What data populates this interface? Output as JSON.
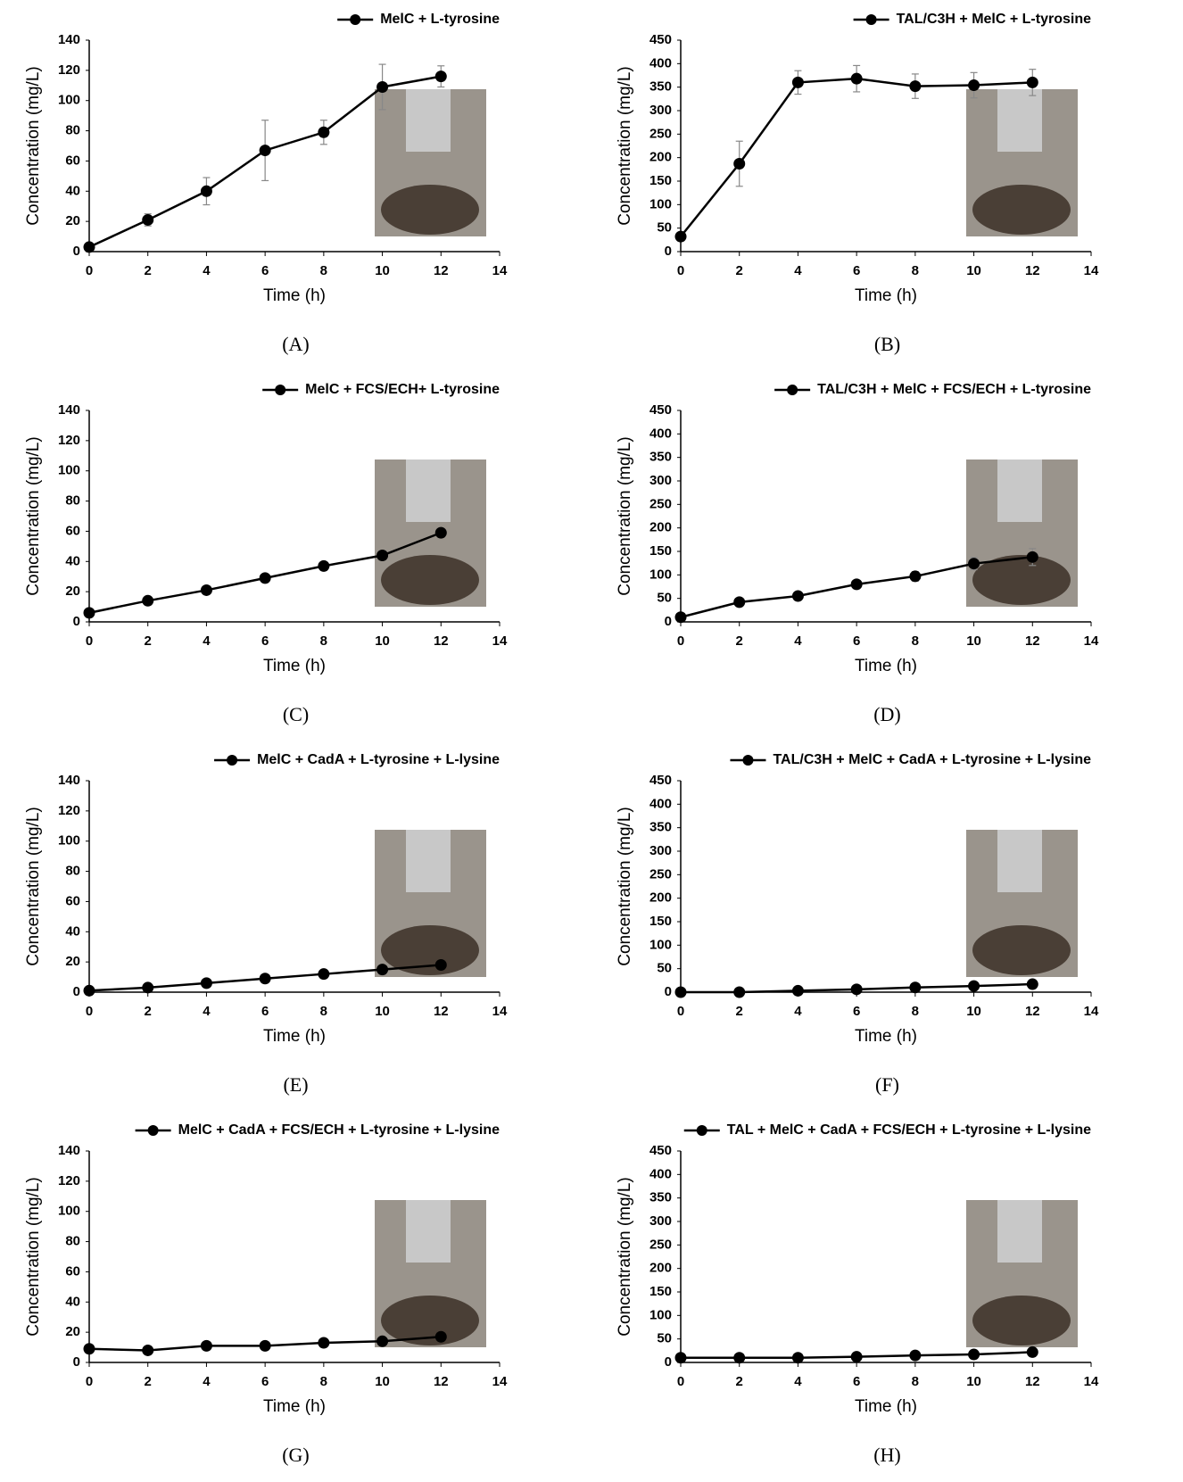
{
  "chart_data": [
    {
      "type": "line",
      "label": "(A)",
      "xlabel": "Time (h)",
      "ylabel": "Concentration (mg/L)",
      "x": [
        0,
        2,
        4,
        6,
        8,
        10,
        12
      ],
      "xlim": [
        0,
        14
      ],
      "xticks": [
        0,
        2,
        4,
        6,
        8,
        10,
        12,
        14
      ],
      "ylim": [
        0,
        140
      ],
      "yticks": [
        0,
        20,
        40,
        60,
        80,
        100,
        120,
        140
      ],
      "series": [
        {
          "name": "MelC + L-tyrosine",
          "color": "#000000",
          "values": [
            3,
            21,
            40,
            67,
            79,
            109,
            116
          ],
          "errors": [
            0,
            4,
            9,
            20,
            8,
            15,
            7
          ]
        }
      ]
    },
    {
      "type": "line",
      "label": "(B)",
      "xlabel": "Time (h)",
      "ylabel": "Concentration (mg/L)",
      "x": [
        0,
        2,
        4,
        6,
        8,
        10,
        12
      ],
      "xlim": [
        0,
        14
      ],
      "xticks": [
        0,
        2,
        4,
        6,
        8,
        10,
        12,
        14
      ],
      "ylim": [
        0,
        450
      ],
      "yticks": [
        0,
        50,
        100,
        150,
        200,
        250,
        300,
        350,
        400,
        450
      ],
      "series": [
        {
          "name": "TAL/C3H + MelC + L-tyrosine",
          "color": "#000000",
          "values": [
            32,
            187,
            360,
            368,
            352,
            354,
            360
          ],
          "errors": [
            5,
            48,
            25,
            28,
            26,
            27,
            28
          ]
        }
      ]
    },
    {
      "type": "line",
      "label": "(C)",
      "xlabel": "Time (h)",
      "ylabel": "Concentration (mg/L)",
      "x": [
        0,
        2,
        4,
        6,
        8,
        10,
        12
      ],
      "xlim": [
        0,
        14
      ],
      "xticks": [
        0,
        2,
        4,
        6,
        8,
        10,
        12,
        14
      ],
      "ylim": [
        0,
        140
      ],
      "yticks": [
        0,
        20,
        40,
        60,
        80,
        100,
        120,
        140
      ],
      "series": [
        {
          "name": "MelC + FCS/ECH+ L-tyrosine",
          "color": "#000000",
          "values": [
            6,
            14,
            21,
            29,
            37,
            44,
            59
          ]
        }
      ]
    },
    {
      "type": "line",
      "label": "(D)",
      "xlabel": "Time (h)",
      "ylabel": "Concentration (mg/L)",
      "x": [
        0,
        2,
        4,
        6,
        8,
        10,
        12
      ],
      "xlim": [
        0,
        14
      ],
      "xticks": [
        0,
        2,
        4,
        6,
        8,
        10,
        12,
        14
      ],
      "ylim": [
        0,
        450
      ],
      "yticks": [
        0,
        50,
        100,
        150,
        200,
        250,
        300,
        350,
        400,
        450
      ],
      "series": [
        {
          "name": "TAL/C3H + MelC + FCS/ECH + L-tyrosine",
          "color": "#000000",
          "values": [
            10,
            42,
            55,
            80,
            97,
            124,
            138
          ],
          "errors": [
            0,
            3,
            3,
            3,
            10,
            13,
            18
          ]
        }
      ]
    },
    {
      "type": "line",
      "label": "(E)",
      "xlabel": "Time (h)",
      "ylabel": "Concentration (mg/L)",
      "x": [
        0,
        2,
        4,
        6,
        8,
        10,
        12
      ],
      "xlim": [
        0,
        14
      ],
      "xticks": [
        0,
        2,
        4,
        6,
        8,
        10,
        12,
        14
      ],
      "ylim": [
        0,
        140
      ],
      "yticks": [
        0,
        20,
        40,
        60,
        80,
        100,
        120,
        140
      ],
      "series": [
        {
          "name": "MelC + CadA + L-tyrosine + L-lysine",
          "color": "#000000",
          "values": [
            1,
            3,
            6,
            9,
            12,
            15,
            18
          ]
        }
      ]
    },
    {
      "type": "line",
      "label": "(F)",
      "xlabel": "Time (h)",
      "ylabel": "Concentration (mg/L)",
      "x": [
        0,
        2,
        4,
        6,
        8,
        10,
        12
      ],
      "xlim": [
        0,
        14
      ],
      "xticks": [
        0,
        2,
        4,
        6,
        8,
        10,
        12,
        14
      ],
      "ylim": [
        0,
        450
      ],
      "yticks": [
        0,
        50,
        100,
        150,
        200,
        250,
        300,
        350,
        400,
        450
      ],
      "series": [
        {
          "name": "TAL/C3H + MelC + CadA + L-tyrosine + L-lysine",
          "color": "#000000",
          "values": [
            0,
            0,
            3,
            6,
            10,
            13,
            17
          ]
        }
      ]
    },
    {
      "type": "line",
      "label": "(G)",
      "xlabel": "Time (h)",
      "ylabel": "Concentration (mg/L)",
      "x": [
        0,
        2,
        4,
        6,
        8,
        10,
        12
      ],
      "xlim": [
        0,
        14
      ],
      "xticks": [
        0,
        2,
        4,
        6,
        8,
        10,
        12,
        14
      ],
      "ylim": [
        0,
        140
      ],
      "yticks": [
        0,
        20,
        40,
        60,
        80,
        100,
        120,
        140
      ],
      "series": [
        {
          "name": "MelC + CadA + FCS/ECH + L-tyrosine + L-lysine",
          "color": "#000000",
          "values": [
            9,
            8,
            11,
            11,
            13,
            14,
            17
          ]
        }
      ]
    },
    {
      "type": "line",
      "label": "(H)",
      "xlabel": "Time (h)",
      "ylabel": "Concentration (mg/L)",
      "x": [
        0,
        2,
        4,
        6,
        8,
        10,
        12
      ],
      "xlim": [
        0,
        14
      ],
      "xticks": [
        0,
        2,
        4,
        6,
        8,
        10,
        12,
        14
      ],
      "ylim": [
        0,
        450
      ],
      "yticks": [
        0,
        50,
        100,
        150,
        200,
        250,
        300,
        350,
        400,
        450
      ],
      "series": [
        {
          "name": "TAL + MelC + CadA + FCS/ECH + L-tyrosine + L-lysine",
          "color": "#000000",
          "values": [
            10,
            10,
            10,
            12,
            15,
            17,
            22
          ]
        }
      ]
    }
  ]
}
